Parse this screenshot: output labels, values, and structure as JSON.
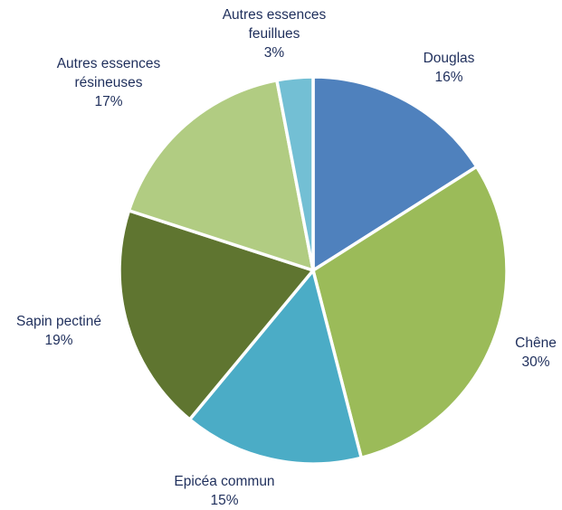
{
  "chart_data": {
    "type": "pie",
    "title": "",
    "slices": [
      {
        "name_lines": [
          "Douglas"
        ],
        "pct_label": "16%",
        "value": 16,
        "color": "#4f81bd"
      },
      {
        "name_lines": [
          "Chêne"
        ],
        "pct_label": "30%",
        "value": 30,
        "color": "#9bbb59"
      },
      {
        "name_lines": [
          "Epicéa commun"
        ],
        "pct_label": "15%",
        "value": 15,
        "color": "#4bacc6"
      },
      {
        "name_lines": [
          "Sapin pectiné"
        ],
        "pct_label": "19%",
        "value": 19,
        "color": "#5f7530"
      },
      {
        "name_lines": [
          "Autres essences",
          "résineuses"
        ],
        "pct_label": "17%",
        "value": 17,
        "color": "#b1cc82"
      },
      {
        "name_lines": [
          "Autres essences",
          "feuillues"
        ],
        "pct_label": "3%",
        "value": 3,
        "color": "#73bfd4"
      }
    ]
  }
}
